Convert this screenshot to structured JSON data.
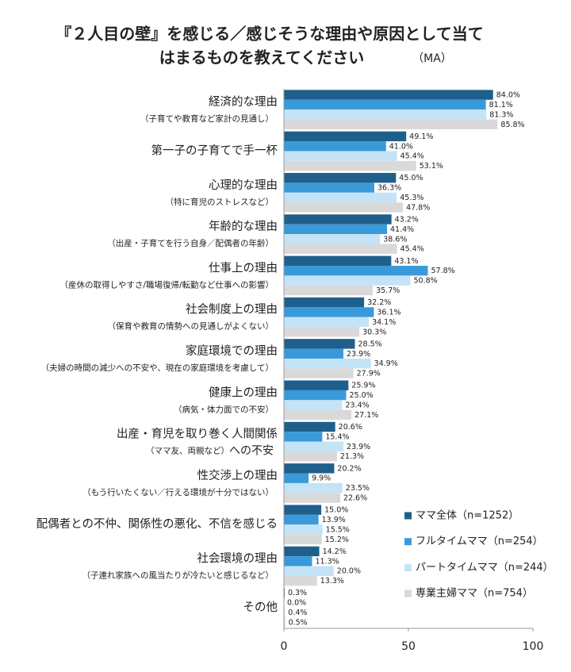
{
  "chart_data": {
    "type": "hbar",
    "title": [
      "『２人目の壁』を感じる／感じそうな理由や原因として当て",
      "はまるものを教えてください"
    ],
    "subtitle": "（MA）",
    "categories": [
      "経済的な理由",
      "第一子の子育てで手一杯",
      "心理的な理由",
      "年齢的な理由",
      "仕事上の理由",
      "社会制度上の理由",
      "家庭環境での理由",
      "健康上の理由",
      "出産・育児を取り巻く人間関係",
      "性交渉上の理由",
      "配偶者との不仲、関係性の悪化、不信を感じる",
      "社会環境の理由",
      "その他"
    ],
    "category_notes": [
      [
        "（子育てや教育など家計の見通し）"
      ],
      [],
      [
        "（特に育児のストレスなど）"
      ],
      [
        "（出産・子育てを行う自身／配偶者の年齢）"
      ],
      [
        "（産休の取得しやすさ/職場復帰/転勤など仕事への影響）"
      ],
      [
        "（保育や教育の情勢への見通しがよくない）"
      ],
      [
        "（夫婦の時間の減少への不安や、現在の家庭環境を考慮して）"
      ],
      [
        "（病気・体力面での不安）"
      ],
      [
        "（ママ友、両親など）",
        "への不安"
      ],
      [
        "（もう行いたくない／行える環境が十分ではない）"
      ],
      [],
      [
        "（子連れ家族への風当たりが冷たいと感じるなど）"
      ],
      []
    ],
    "series": [
      {
        "name": "ママ全体（n=1252）",
        "color": "#1f5f8b",
        "values": [
          84.0,
          49.1,
          45.0,
          43.2,
          43.1,
          32.2,
          28.5,
          25.9,
          20.6,
          20.2,
          15.0,
          14.2,
          0.3
        ],
        "value_labels": [
          "84.0%",
          "49.1%",
          "45.0%",
          "43.2%",
          "43.1%",
          "32.2%",
          "28.5%",
          "25.9%",
          "20.6%",
          "20.2%",
          "15.0%",
          "14.2%",
          "0.3%"
        ]
      },
      {
        "name": "フルタイムママ（n=254）",
        "color": "#3a9ad9",
        "values": [
          81.1,
          41.0,
          36.3,
          41.4,
          57.8,
          36.1,
          23.9,
          25.0,
          15.4,
          9.9,
          13.9,
          11.3,
          0.0
        ],
        "value_labels": [
          "81.1%",
          "41.0%",
          "36.3%",
          "41.4%",
          "57.8%",
          "36.1%",
          "23.9%",
          "25.0%",
          "15.4%",
          "9.9%",
          "13.9%",
          "11.3%",
          "0.0%"
        ]
      },
      {
        "name": "パートタイムママ（n=244）",
        "color": "#c5e3f6",
        "values": [
          81.3,
          45.4,
          45.3,
          38.6,
          50.8,
          34.1,
          34.9,
          23.4,
          23.9,
          23.5,
          15.5,
          20.0,
          0.4
        ],
        "value_labels": [
          "81.3%",
          "45.4%",
          "45.3%",
          "38.6%",
          "50.8%",
          "34.1%",
          "34.9%",
          "23.4%",
          "23.9%",
          "23.5%",
          "15.5%",
          "20.0%",
          "0.4%"
        ]
      },
      {
        "name": "専業主婦ママ（n=754）",
        "color": "#d9d9d9",
        "values": [
          85.8,
          53.1,
          47.8,
          45.4,
          35.7,
          30.3,
          27.9,
          27.1,
          21.3,
          22.6,
          15.2,
          13.3,
          0.5
        ],
        "value_labels": [
          "85.8%",
          "53.1%",
          "47.8%",
          "45.4%",
          "35.7%",
          "30.3%",
          "27.9%",
          "27.1%",
          "21.3%",
          "22.6%",
          "15.2%",
          "13.3%",
          "0.5%"
        ]
      }
    ],
    "xlim": [
      0,
      100
    ],
    "xticks": [
      0,
      50,
      100
    ],
    "legend": "lower right"
  }
}
